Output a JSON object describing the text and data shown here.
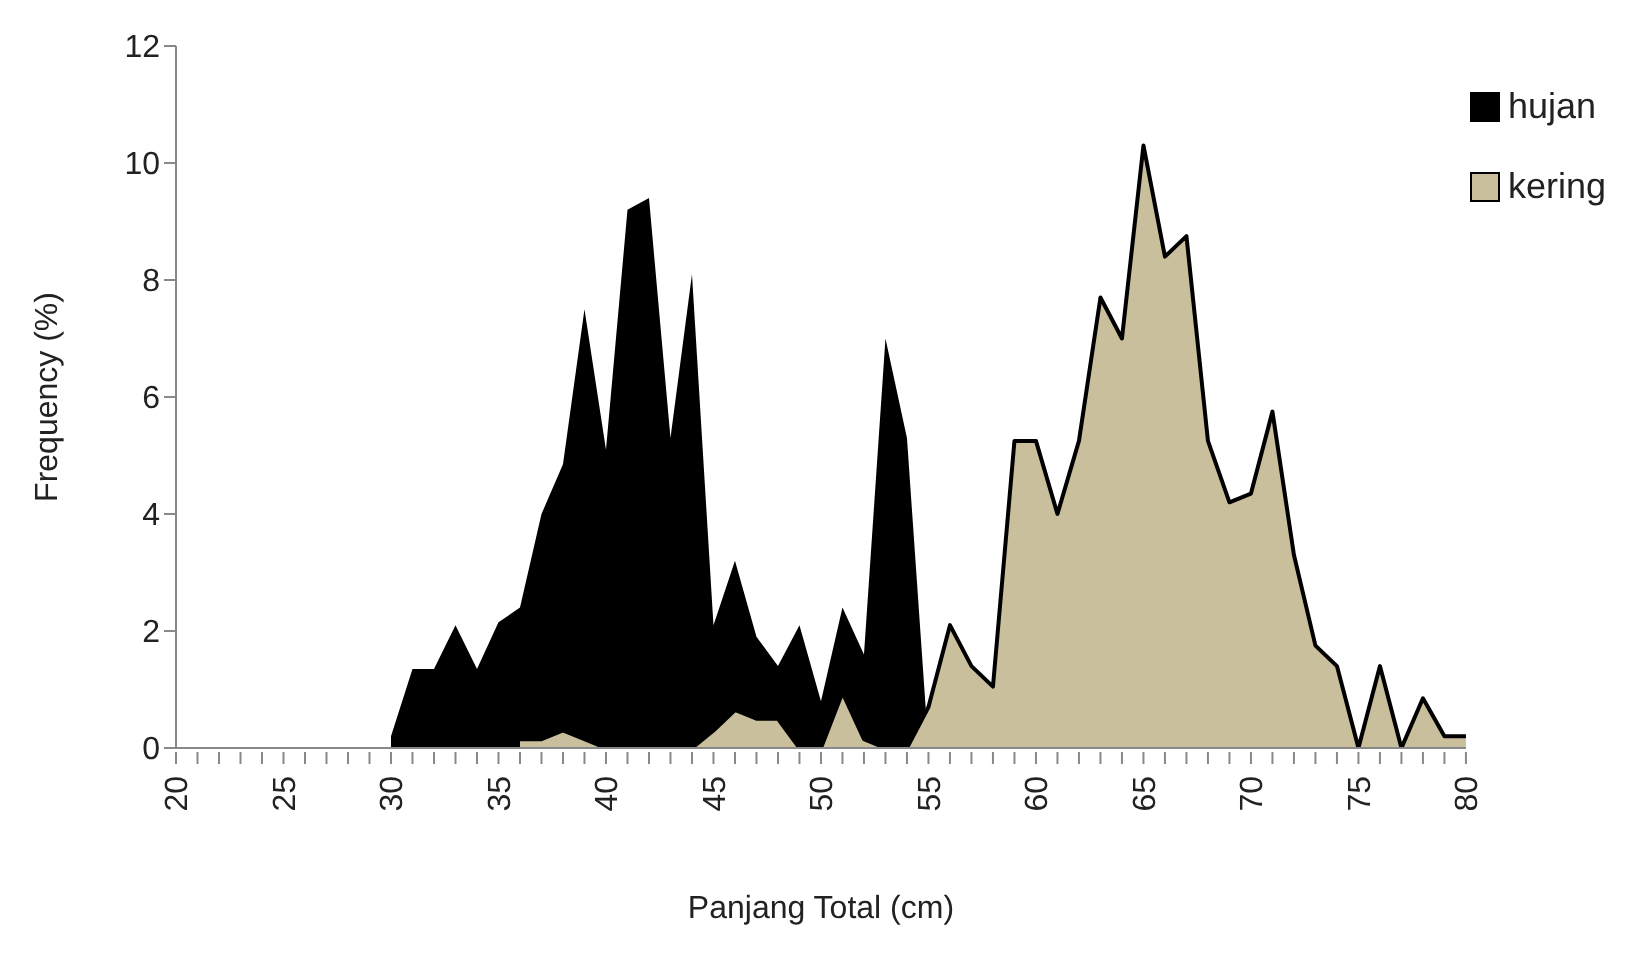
{
  "chart_data": {
    "type": "area",
    "xlabel": "Panjang Total (cm)",
    "ylabel": "Frequency (%)",
    "series": [
      {
        "name": "hujan",
        "color": "#000000",
        "x": [
          30,
          31,
          32,
          33,
          34,
          35,
          36,
          37,
          38,
          39,
          40,
          41,
          42,
          43,
          44,
          45,
          46,
          47,
          48,
          49,
          50,
          51,
          52,
          53,
          54,
          55
        ],
        "values": [
          0.2,
          1.35,
          1.35,
          2.1,
          1.35,
          2.15,
          2.4,
          4.0,
          4.85,
          7.5,
          5.1,
          9.2,
          9.4,
          5.3,
          8.1,
          2.1,
          3.2,
          1.9,
          1.4,
          2.1,
          0.8,
          2.4,
          1.6,
          7.0,
          5.3,
          0
        ]
      },
      {
        "name": "kering",
        "color": "#c9bf9c",
        "x": [
          36,
          37,
          38,
          39,
          40,
          41,
          42,
          43,
          44,
          45,
          46,
          47,
          48,
          49,
          50,
          51,
          52,
          53,
          54,
          55,
          56,
          57,
          58,
          59,
          60,
          61,
          62,
          63,
          64,
          65,
          66,
          67,
          68,
          69,
          70,
          71,
          72,
          73,
          74,
          75,
          76,
          77,
          78,
          79,
          80
        ],
        "values": [
          0.15,
          0.15,
          0.3,
          0.15,
          0,
          0,
          0,
          0,
          0,
          0.3,
          0.65,
          0.5,
          0.5,
          0,
          0,
          0.95,
          0.15,
          0,
          0,
          0.7,
          2.1,
          1.4,
          1.05,
          5.25,
          5.25,
          4.0,
          5.25,
          7.7,
          7.0,
          10.3,
          8.4,
          8.75,
          5.25,
          4.2,
          4.35,
          5.75,
          3.3,
          1.75,
          1.4,
          0,
          1.4,
          0,
          0.85,
          0.2,
          0.2
        ]
      }
    ],
    "xlim": [
      20,
      80
    ],
    "xticks": [
      20,
      {
        "value": 21,
        "label": null
      },
      {
        "value": 22,
        "label": null
      },
      {
        "value": 23,
        "label": null
      },
      {
        "value": 24,
        "label": null
      },
      25,
      {
        "value": 26,
        "label": null
      },
      {
        "value": 27,
        "label": null
      },
      {
        "value": 28,
        "label": null
      },
      {
        "value": 29,
        "label": null
      },
      30,
      {
        "value": 31,
        "label": null
      },
      {
        "value": 32,
        "label": null
      },
      {
        "value": 33,
        "label": null
      },
      {
        "value": 34,
        "label": null
      },
      35,
      {
        "value": 36,
        "label": null
      },
      {
        "value": 37,
        "label": null
      },
      {
        "value": 38,
        "label": null
      },
      {
        "value": 39,
        "label": null
      },
      40,
      {
        "value": 41,
        "label": null
      },
      {
        "value": 42,
        "label": null
      },
      {
        "value": 43,
        "label": null
      },
      {
        "value": 44,
        "label": null
      },
      45,
      {
        "value": 46,
        "label": null
      },
      {
        "value": 47,
        "label": null
      },
      {
        "value": 48,
        "label": null
      },
      {
        "value": 49,
        "label": null
      },
      50,
      {
        "value": 51,
        "label": null
      },
      {
        "value": 52,
        "label": null
      },
      {
        "value": 53,
        "label": null
      },
      {
        "value": 54,
        "label": null
      },
      55,
      {
        "value": 56,
        "label": null
      },
      {
        "value": 57,
        "label": null
      },
      {
        "value": 58,
        "label": null
      },
      {
        "value": 59,
        "label": null
      },
      60,
      {
        "value": 61,
        "label": null
      },
      {
        "value": 62,
        "label": null
      },
      {
        "value": 63,
        "label": null
      },
      {
        "value": 64,
        "label": null
      },
      65,
      {
        "value": 66,
        "label": null
      },
      {
        "value": 67,
        "label": null
      },
      {
        "value": 68,
        "label": null
      },
      {
        "value": 69,
        "label": null
      },
      70,
      {
        "value": 71,
        "label": null
      },
      {
        "value": 72,
        "label": null
      },
      {
        "value": 73,
        "label": null
      },
      {
        "value": 74,
        "label": null
      },
      75,
      {
        "value": 76,
        "label": null
      },
      {
        "value": 77,
        "label": null
      },
      {
        "value": 78,
        "label": null
      },
      {
        "value": 79,
        "label": null
      },
      80
    ],
    "ylim": [
      0,
      12
    ],
    "yticks": [
      0,
      2,
      4,
      6,
      8,
      10,
      12
    ],
    "grid": false,
    "legend": "top right"
  }
}
